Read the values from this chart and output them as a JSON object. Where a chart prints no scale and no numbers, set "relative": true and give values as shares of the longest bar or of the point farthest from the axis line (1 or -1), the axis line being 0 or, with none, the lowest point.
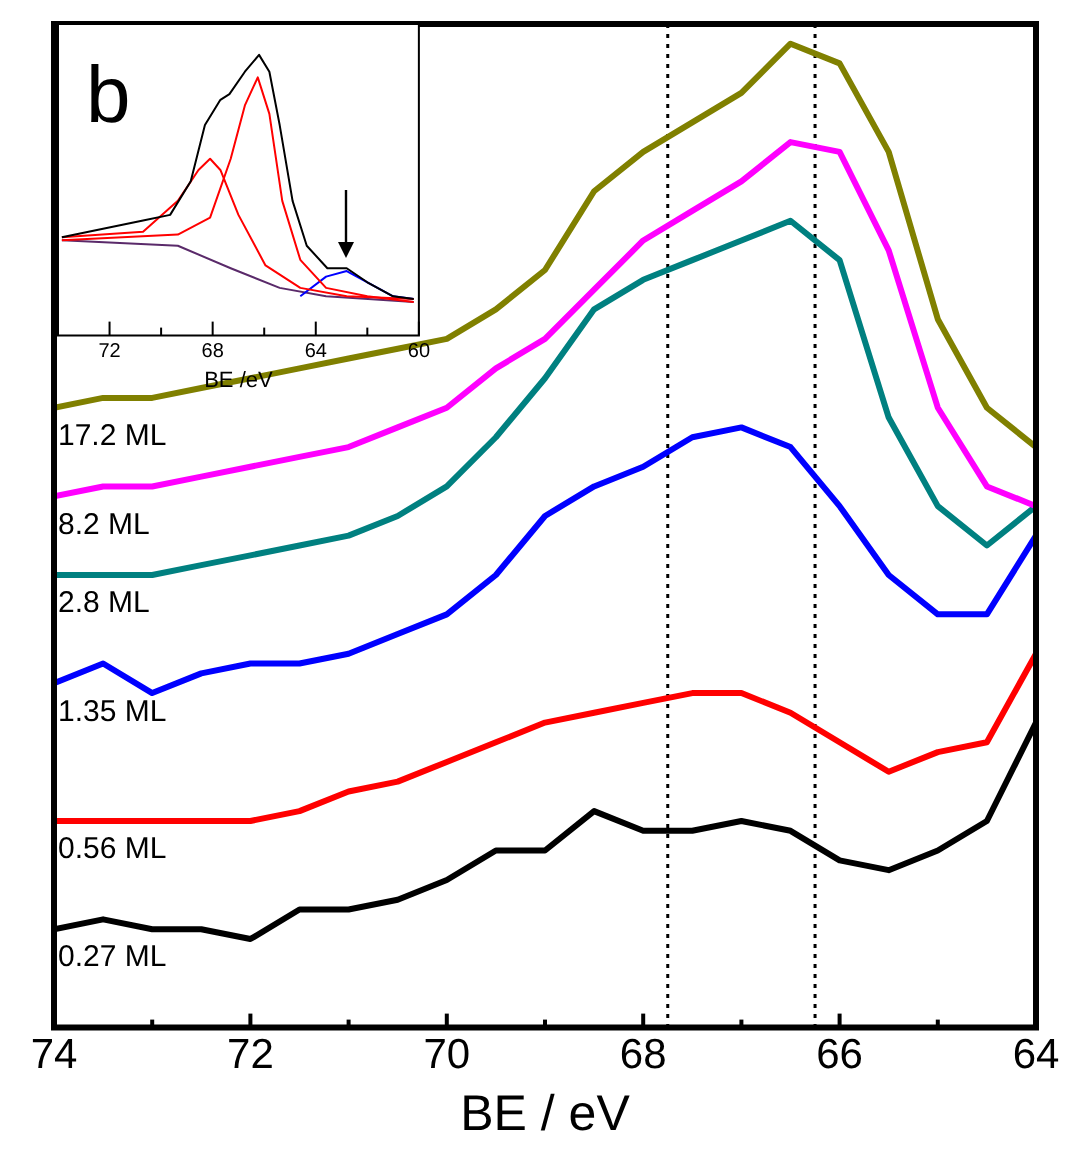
{
  "chart_data": [
    {
      "type": "line",
      "xlabel": "BE / eV",
      "relative": true,
      "xlim": [
        74,
        64
      ],
      "xticks": [
        74,
        {
          "value": 73,
          "label": null
        },
        72,
        {
          "value": 71,
          "label": null
        },
        70,
        {
          "value": 69,
          "label": null
        },
        68,
        {
          "value": 67,
          "label": null
        },
        66,
        {
          "value": 65,
          "label": null
        },
        64
      ],
      "x": [
        74,
        73.5,
        73,
        72.5,
        72,
        71.5,
        71,
        70.5,
        70,
        69.5,
        69,
        68.5,
        68,
        67.5,
        67,
        66.5,
        66,
        65.5,
        65,
        64.5,
        64
      ],
      "series": [
        {
          "name": "17.2 ML",
          "color": "#808000",
          "values": [
            0.63,
            0.64,
            0.64,
            0.65,
            0.66,
            0.67,
            0.68,
            0.69,
            0.7,
            0.73,
            0.77,
            0.85,
            0.89,
            0.92,
            0.95,
            1,
            0.98,
            0.89,
            0.72,
            0.63,
            0.59
          ]
        },
        {
          "name": "8.2 ML",
          "color": "#ff00ff",
          "values": [
            0.54,
            0.55,
            0.55,
            0.56,
            0.57,
            0.58,
            0.59,
            0.61,
            0.63,
            0.67,
            0.7,
            0.75,
            0.8,
            0.83,
            0.86,
            0.9,
            0.89,
            0.79,
            0.63,
            0.55,
            0.53
          ]
        },
        {
          "name": "2.8 ML",
          "color": "#008080",
          "values": [
            0.46,
            0.46,
            0.46,
            0.47,
            0.48,
            0.49,
            0.5,
            0.52,
            0.55,
            0.6,
            0.66,
            0.73,
            0.76,
            0.78,
            0.8,
            0.82,
            0.78,
            0.62,
            0.53,
            0.49,
            0.53
          ]
        },
        {
          "name": "1.35 ML",
          "color": "#0000ff",
          "values": [
            0.35,
            0.37,
            0.34,
            0.36,
            0.37,
            0.37,
            0.38,
            0.4,
            0.42,
            0.46,
            0.52,
            0.55,
            0.57,
            0.6,
            0.61,
            0.59,
            0.53,
            0.46,
            0.42,
            0.42,
            0.5
          ]
        },
        {
          "name": "0.56 ML",
          "color": "#ff0000",
          "values": [
            0.21,
            0.21,
            0.21,
            0.21,
            0.21,
            0.22,
            0.24,
            0.25,
            0.27,
            0.29,
            0.31,
            0.32,
            0.33,
            0.34,
            0.34,
            0.32,
            0.29,
            0.26,
            0.28,
            0.29,
            0.38
          ]
        },
        {
          "name": "0.27 ML",
          "color": "#000000",
          "values": [
            0.1,
            0.11,
            0.1,
            0.1,
            0.09,
            0.12,
            0.12,
            0.13,
            0.15,
            0.18,
            0.18,
            0.22,
            0.2,
            0.2,
            0.21,
            0.2,
            0.17,
            0.16,
            0.18,
            0.21,
            0.31
          ]
        }
      ],
      "ref_lines": [
        {
          "axis": "x",
          "value": 67.75,
          "color": "#000000",
          "line_style": "dotted"
        },
        {
          "axis": "x",
          "value": 66.25,
          "color": "#000000",
          "line_style": "dotted"
        }
      ]
    },
    {
      "type": "line",
      "xlabel": "BE /eV",
      "relative": true,
      "xlim": [
        74,
        60
      ],
      "xticks": [
        {
          "value": 74,
          "label": null
        },
        72,
        {
          "value": 70,
          "label": null
        },
        68,
        {
          "value": 66,
          "label": null
        },
        64,
        {
          "value": 62,
          "label": null
        },
        60
      ],
      "annotations": [
        "b"
      ],
      "series": [
        {
          "color": "#000000",
          "x": [
            73.85,
            70.7,
            69.65,
            68.85,
            68.3,
            67.7,
            67.35,
            66.75,
            66.2,
            65.8,
            65.4,
            64.9,
            64.35,
            63.55,
            62.8,
            62.0,
            61.0,
            60.2
          ],
          "values": [
            0.35,
            0.41,
            0.43,
            0.55,
            0.75,
            0.84,
            0.86,
            0.94,
            1,
            0.94,
            0.75,
            0.48,
            0.32,
            0.24,
            0.24,
            0.19,
            0.14,
            0.13
          ]
        },
        {
          "color": "#ff0000",
          "x": [
            73.85,
            70.7,
            69.35,
            68.55,
            68.1,
            67.7,
            67.0,
            65.95,
            64.6,
            62.8,
            60.2
          ],
          "values": [
            0.35,
            0.37,
            0.48,
            0.59,
            0.63,
            0.59,
            0.43,
            0.25,
            0.17,
            0.14,
            0.13
          ]
        },
        {
          "color": "#ff0000",
          "x": [
            73.85,
            69.35,
            68.1,
            67.3,
            66.75,
            66.25,
            65.8,
            65.3,
            64.6,
            63.6,
            62.0,
            60.2
          ],
          "values": [
            0.34,
            0.36,
            0.42,
            0.63,
            0.82,
            0.92,
            0.79,
            0.48,
            0.27,
            0.17,
            0.14,
            0.12
          ]
        },
        {
          "color": "#0000ff",
          "x": [
            64.6,
            63.6,
            62.8,
            61.8,
            61.0,
            60.2
          ],
          "values": [
            0.14,
            0.21,
            0.23,
            0.18,
            0.14,
            0.13
          ]
        },
        {
          "color": "#5a2a6a",
          "x": [
            73.85,
            69.35,
            67.3,
            65.4,
            63.6,
            60.2
          ],
          "values": [
            0.34,
            0.32,
            0.24,
            0.17,
            0.14,
            0.12
          ]
        }
      ]
    }
  ]
}
